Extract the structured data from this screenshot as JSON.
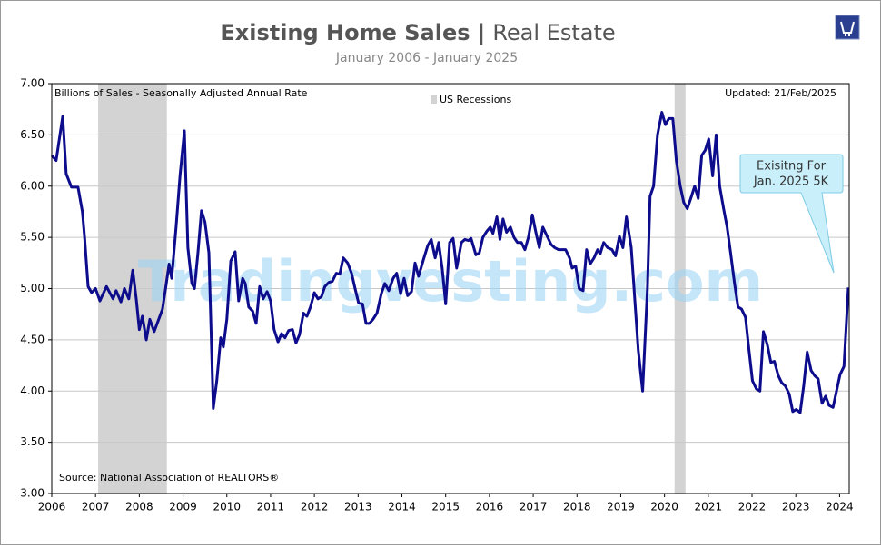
{
  "chart_data": {
    "type": "line",
    "title": "Existing Home Sales",
    "title_separator": "|",
    "title_suffix": "Real Estate",
    "subtitle": "January 2006 - January 2025",
    "y_label": "Billions of Sales - Seasonally Adjusted Annual Rate",
    "updated": "Updated: 21/Feb/2025",
    "source": "Source:  National Association of REALTORS®",
    "annotation": [
      "Exisitng For",
      "Jan. 2025 5K"
    ],
    "watermark": "Tradingvesting.com",
    "recession_label": "US Recessions",
    "recessions": [
      [
        2007.06,
        2008.63
      ],
      [
        2020.23,
        2020.48
      ]
    ],
    "recession_color": "#d3d3d3",
    "color": "#0c0c8c",
    "grid": true,
    "xlim": [
      2006,
      2024.22
    ],
    "ylim": [
      3,
      7
    ],
    "xticks": [
      2006,
      2007,
      2008,
      2009,
      2010,
      2011,
      2012,
      2013,
      2014,
      2015,
      2016,
      2017,
      2018,
      2019,
      2020,
      2021,
      2022,
      2023,
      2024
    ],
    "yticks": [
      {
        "value": 3,
        "label": "3.00"
      },
      {
        "value": 3.5,
        "label": "3.50"
      },
      {
        "value": 4,
        "label": "4.00"
      },
      {
        "value": 4.5,
        "label": "4.50"
      },
      {
        "value": 5,
        "label": "5.00"
      },
      {
        "value": 5.5,
        "label": "5.50"
      },
      {
        "value": 6,
        "label": "6.00"
      },
      {
        "value": 6.5,
        "label": "6.50"
      },
      {
        "value": 7,
        "label": "7.00"
      }
    ],
    "x": [
      2006.0,
      2006.1,
      2006.25,
      2006.33,
      2006.45,
      2006.6,
      2006.7,
      2006.75,
      2006.83,
      2006.91,
      2007.0,
      2007.1,
      2007.25,
      2007.4,
      2007.47,
      2007.58,
      2007.66,
      2007.76,
      2007.85,
      2007.93,
      2008.0,
      2008.07,
      2008.16,
      2008.24,
      2008.34,
      2008.53,
      2008.6,
      2008.68,
      2008.74,
      2008.84,
      2008.93,
      2009.03,
      2009.11,
      2009.2,
      2009.26,
      2009.34,
      2009.42,
      2009.5,
      2009.59,
      2009.69,
      2009.77,
      2009.86,
      2009.92,
      2010.0,
      2010.09,
      2010.19,
      2010.27,
      2010.36,
      2010.42,
      2010.5,
      2010.59,
      2010.67,
      2010.75,
      2010.83,
      2010.92,
      2011.0,
      2011.08,
      2011.17,
      2011.25,
      2011.33,
      2011.41,
      2011.5,
      2011.58,
      2011.66,
      2011.75,
      2011.83,
      2011.91,
      2012.0,
      2012.08,
      2012.16,
      2012.24,
      2012.33,
      2012.41,
      2012.5,
      2012.58,
      2012.66,
      2012.76,
      2012.85,
      2012.93,
      2013.01,
      2013.1,
      2013.18,
      2013.26,
      2013.34,
      2013.43,
      2013.53,
      2013.61,
      2013.7,
      2013.8,
      2013.88,
      2013.97,
      2014.05,
      2014.13,
      2014.22,
      2014.3,
      2014.38,
      2014.49,
      2014.59,
      2014.67,
      2014.76,
      2014.84,
      2014.92,
      2015.0,
      2015.09,
      2015.17,
      2015.25,
      2015.36,
      2015.44,
      2015.52,
      2015.58,
      2015.69,
      2015.77,
      2015.85,
      2015.94,
      2016.02,
      2016.08,
      2016.17,
      2016.24,
      2016.31,
      2016.39,
      2016.48,
      2016.56,
      2016.64,
      2016.73,
      2016.81,
      2016.89,
      2016.98,
      2017.06,
      2017.14,
      2017.22,
      2017.33,
      2017.41,
      2017.49,
      2017.58,
      2017.66,
      2017.74,
      2017.83,
      2017.89,
      2017.97,
      2018.05,
      2018.14,
      2018.22,
      2018.3,
      2018.39,
      2018.47,
      2018.53,
      2018.61,
      2018.7,
      2018.8,
      2018.88,
      2018.97,
      2019.05,
      2019.13,
      2019.24,
      2019.4,
      2019.5,
      2019.61,
      2019.67,
      2019.75,
      2019.84,
      2019.94,
      2020.02,
      2020.1,
      2020.19,
      2020.27,
      2020.36,
      2020.44,
      2020.52,
      2020.6,
      2020.69,
      2020.77,
      2020.85,
      2020.93,
      2021.01,
      2021.1,
      2021.18,
      2021.26,
      2021.35,
      2021.43,
      2021.51,
      2021.6,
      2021.68,
      2021.76,
      2021.85,
      2021.93,
      2022.01,
      2022.1,
      2022.18,
      2022.26,
      2022.35,
      2022.43,
      2022.51,
      2022.6,
      2022.68,
      2022.76,
      2022.85,
      2022.93,
      2023.01,
      2023.1,
      2023.18,
      2023.26,
      2023.35,
      2023.43,
      2023.51,
      2023.6,
      2023.68,
      2023.76,
      2023.85,
      2023.93,
      2024.01,
      2024.1,
      2024.2
    ],
    "values": [
      6.3,
      6.25,
      6.68,
      6.12,
      5.99,
      5.99,
      5.75,
      5.5,
      5.02,
      4.96,
      5.0,
      4.88,
      5.02,
      4.9,
      4.98,
      4.87,
      5.0,
      4.9,
      5.18,
      4.9,
      4.6,
      4.73,
      4.5,
      4.7,
      4.58,
      4.8,
      5.0,
      5.24,
      5.1,
      5.6,
      6.1,
      6.54,
      5.4,
      5.05,
      5.0,
      5.35,
      5.76,
      5.65,
      5.35,
      3.83,
      4.1,
      4.52,
      4.43,
      4.7,
      5.27,
      5.36,
      4.88,
      5.1,
      5.05,
      4.82,
      4.78,
      4.66,
      5.02,
      4.9,
      4.97,
      4.88,
      4.6,
      4.48,
      4.56,
      4.52,
      4.59,
      4.6,
      4.47,
      4.55,
      4.76,
      4.73,
      4.82,
      4.96,
      4.9,
      4.92,
      5.02,
      5.06,
      5.07,
      5.15,
      5.14,
      5.3,
      5.25,
      5.15,
      5.0,
      4.86,
      4.85,
      4.66,
      4.66,
      4.7,
      4.76,
      4.95,
      5.05,
      4.98,
      5.1,
      5.15,
      4.95,
      5.1,
      4.93,
      4.97,
      5.25,
      5.12,
      5.28,
      5.42,
      5.48,
      5.3,
      5.45,
      5.2,
      4.85,
      5.45,
      5.49,
      5.2,
      5.45,
      5.48,
      5.47,
      5.49,
      5.33,
      5.35,
      5.5,
      5.56,
      5.6,
      5.54,
      5.7,
      5.48,
      5.68,
      5.55,
      5.6,
      5.5,
      5.45,
      5.45,
      5.38,
      5.5,
      5.72,
      5.55,
      5.4,
      5.6,
      5.5,
      5.43,
      5.4,
      5.38,
      5.38,
      5.38,
      5.3,
      5.2,
      5.22,
      5.0,
      4.98,
      5.38,
      5.24,
      5.3,
      5.38,
      5.34,
      5.45,
      5.4,
      5.38,
      5.32,
      5.51,
      5.4,
      5.7,
      5.4,
      4.4,
      4.0,
      5.0,
      5.9,
      6.0,
      6.5,
      6.72,
      6.6,
      6.66,
      6.66,
      6.25,
      6.0,
      5.84,
      5.78,
      5.88,
      6.0,
      5.88,
      6.3,
      6.35,
      6.46,
      6.1,
      6.5,
      6.0,
      5.78,
      5.6,
      5.35,
      5.05,
      4.82,
      4.8,
      4.72,
      4.4,
      4.1,
      4.02,
      4.0,
      4.58,
      4.45,
      4.28,
      4.29,
      4.15,
      4.08,
      4.05,
      3.97,
      3.8,
      3.82,
      3.79,
      4.05,
      4.38,
      4.2,
      4.15,
      4.12,
      3.88,
      3.95,
      3.86,
      3.84,
      4.0,
      4.16,
      4.24,
      5.01
    ]
  }
}
